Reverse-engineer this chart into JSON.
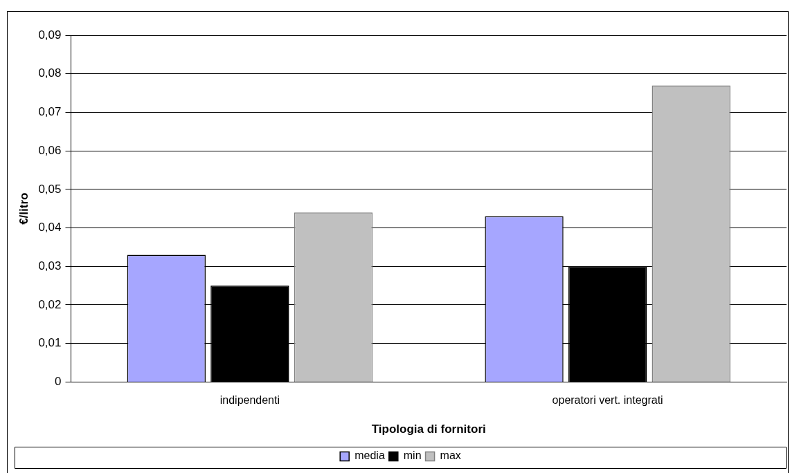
{
  "chart_data": {
    "type": "bar",
    "xlabel": "Tipologia di fornitori",
    "ylabel": "€/litro",
    "categories": [
      "indipendenti",
      "operatori vert. integrati"
    ],
    "series": [
      {
        "name": "media",
        "color": "#a6a6ff",
        "values": [
          0.033,
          0.043
        ]
      },
      {
        "name": "min",
        "color": "#000000",
        "values": [
          0.025,
          0.03
        ]
      },
      {
        "name": "max",
        "color": "#c0c0c0",
        "values": [
          0.044,
          0.077
        ]
      }
    ],
    "ylim": [
      0,
      0.09
    ],
    "yticks": [
      {
        "value": 0,
        "label": "0"
      },
      {
        "value": 0.01,
        "label": "0,01"
      },
      {
        "value": 0.02,
        "label": "0,02"
      },
      {
        "value": 0.03,
        "label": "0,03"
      },
      {
        "value": 0.04,
        "label": "0,04"
      },
      {
        "value": 0.05,
        "label": "0,05"
      },
      {
        "value": 0.06,
        "label": "0,06"
      },
      {
        "value": 0.07,
        "label": "0,07"
      },
      {
        "value": 0.08,
        "label": "0,08"
      },
      {
        "value": 0.09,
        "label": "0,09"
      }
    ],
    "grid": "y",
    "legend": "bottom"
  }
}
